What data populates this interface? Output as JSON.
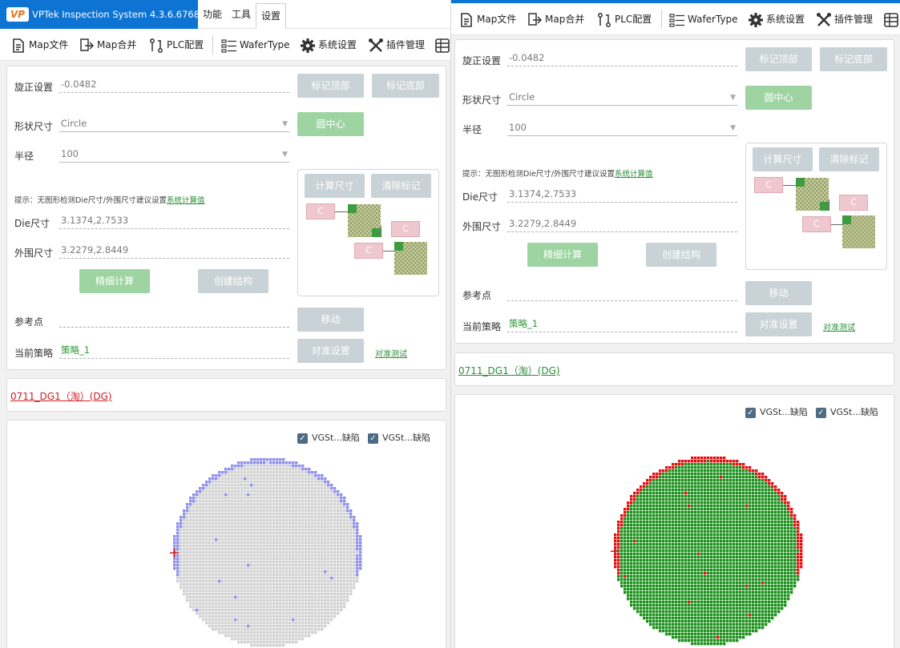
{
  "app": {
    "title": "VPTek Inspection System 4.3.6.6768",
    "logo_text": "VP",
    "menu": [
      "功能",
      "工具",
      "设置"
    ],
    "active_menu": "设置"
  },
  "toolbar": {
    "items": [
      {
        "label": "Map文件",
        "icon": "map-file-icon"
      },
      {
        "label": "Map合并",
        "icon": "map-merge-icon"
      },
      {
        "label": "PLC配置",
        "icon": "plc-icon"
      },
      {
        "label": "WaferType",
        "icon": "wafer-type-icon"
      },
      {
        "label": "系统设置",
        "icon": "gear-icon"
      },
      {
        "label": "插件管理",
        "icon": "plugin-tools-icon"
      },
      {
        "label": "",
        "icon": "table-icon"
      }
    ]
  },
  "settings": {
    "rotation_label": "旋正设置",
    "rotation_value": "-0.0482",
    "mark_top_button": "标记顶部",
    "mark_bottom_button": "标记底部",
    "shape_label": "形状尺寸",
    "shape_value": "Circle",
    "circle_center_button": "圆中心",
    "radius_label": "半径",
    "radius_value": "100",
    "calc_size_button": "计算尺寸",
    "clear_marks_button": "清除标记",
    "hint_text": "提示：无图形检测Die尺寸/外围尺寸建议设置",
    "hint_link": "系统计算值",
    "die_size_label": "Die尺寸",
    "die_size_value": "3.1374,2.7533",
    "outer_size_label": "外围尺寸",
    "outer_size_value": "3.2279,2.8449",
    "fine_calc_button": "精细计算",
    "create_structure_button": "创建结构",
    "reference_label": "参考点",
    "reference_value": "",
    "move_button": "移动",
    "strategy_label": "当前策略",
    "strategy_value": "策略_1",
    "align_settings_button": "对准设置",
    "align_test_link": "对准测试",
    "c_marker_label": "C"
  },
  "recipe": {
    "name": "0711_DG1（淘）(DG)",
    "color_left": "#d11f1f",
    "color_right": "#2d8e3b"
  },
  "wafer_map": {
    "legend": [
      {
        "label": "VGSt...缺陷",
        "checked": true
      },
      {
        "label": "VGSt...缺陷",
        "checked": true
      }
    ],
    "left_theme": {
      "die": "#d2d2d2",
      "edge": "#8d8de8",
      "defect": "#8d8de8"
    },
    "right_theme": {
      "die": "#1a8f1a",
      "edge": "#e01010",
      "defect": "#e01010"
    },
    "marker": "+"
  },
  "colors": {
    "title_bar": "#0e74d4",
    "button_disabled": "#c9d2d6",
    "button_green": "#9dd4a2",
    "link_green": "#2d8e3b"
  }
}
